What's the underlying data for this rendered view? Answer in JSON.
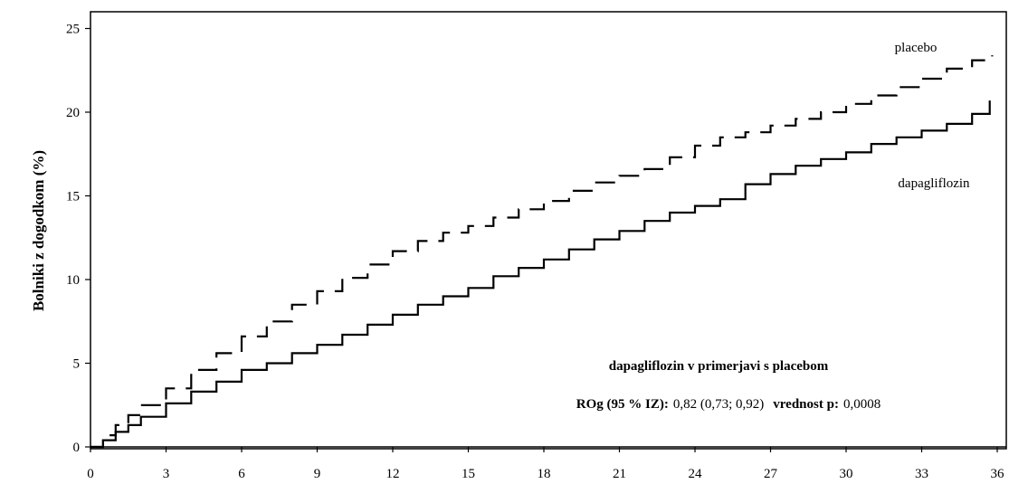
{
  "chart_data": {
    "type": "line",
    "ylabel": "Bolniki z dogodkom (%)",
    "xlabel": "",
    "xlim": [
      0,
      36
    ],
    "ylim": [
      0,
      26
    ],
    "x_ticks": [
      0,
      3,
      6,
      9,
      12,
      15,
      18,
      21,
      24,
      27,
      30,
      33,
      36
    ],
    "y_ticks": [
      0,
      5,
      10,
      15,
      20,
      25
    ],
    "grid": false,
    "series": [
      {
        "name": "placebo",
        "style": "dashed",
        "color": "#000000",
        "points": [
          [
            0,
            0
          ],
          [
            0.5,
            0.7
          ],
          [
            1,
            1.3
          ],
          [
            1.5,
            1.9
          ],
          [
            2,
            2.5
          ],
          [
            3,
            3.5
          ],
          [
            4,
            4.6
          ],
          [
            5,
            5.6
          ],
          [
            6,
            6.6
          ],
          [
            7,
            7.5
          ],
          [
            8,
            8.5
          ],
          [
            9,
            9.3
          ],
          [
            10,
            10.1
          ],
          [
            11,
            10.9
          ],
          [
            12,
            11.7
          ],
          [
            13,
            12.3
          ],
          [
            14,
            12.8
          ],
          [
            15,
            13.2
          ],
          [
            16,
            13.7
          ],
          [
            17,
            14.2
          ],
          [
            18,
            14.7
          ],
          [
            19,
            15.3
          ],
          [
            20,
            15.8
          ],
          [
            21,
            16.2
          ],
          [
            22,
            16.6
          ],
          [
            23,
            17.3
          ],
          [
            24,
            18.0
          ],
          [
            25,
            18.5
          ],
          [
            26,
            18.8
          ],
          [
            27,
            19.2
          ],
          [
            28,
            19.6
          ],
          [
            29,
            20.0
          ],
          [
            30,
            20.5
          ],
          [
            31,
            21.0
          ],
          [
            32,
            21.5
          ],
          [
            33,
            22.0
          ],
          [
            34,
            22.6
          ],
          [
            35,
            23.1
          ],
          [
            35.8,
            23.4
          ]
        ]
      },
      {
        "name": "dapagliflozin",
        "style": "solid",
        "color": "#000000",
        "points": [
          [
            0,
            0
          ],
          [
            0.5,
            0.4
          ],
          [
            1,
            0.9
          ],
          [
            1.5,
            1.3
          ],
          [
            2,
            1.8
          ],
          [
            3,
            2.6
          ],
          [
            4,
            3.3
          ],
          [
            5,
            3.9
          ],
          [
            6,
            4.6
          ],
          [
            7,
            5.0
          ],
          [
            8,
            5.6
          ],
          [
            9,
            6.1
          ],
          [
            10,
            6.7
          ],
          [
            11,
            7.3
          ],
          [
            12,
            7.9
          ],
          [
            13,
            8.5
          ],
          [
            14,
            9.0
          ],
          [
            15,
            9.5
          ],
          [
            16,
            10.2
          ],
          [
            17,
            10.7
          ],
          [
            18,
            11.2
          ],
          [
            19,
            11.8
          ],
          [
            20,
            12.4
          ],
          [
            21,
            12.9
          ],
          [
            22,
            13.5
          ],
          [
            23,
            14.0
          ],
          [
            24,
            14.4
          ],
          [
            25,
            14.8
          ],
          [
            26,
            15.7
          ],
          [
            27,
            16.3
          ],
          [
            28,
            16.8
          ],
          [
            29,
            17.2
          ],
          [
            30,
            17.6
          ],
          [
            31,
            18.1
          ],
          [
            32,
            18.5
          ],
          [
            33,
            18.9
          ],
          [
            34,
            19.3
          ],
          [
            35,
            19.9
          ],
          [
            35.7,
            20.7
          ]
        ]
      }
    ],
    "labels": {
      "placebo": "placebo",
      "dapagliflozin": "dapagliflozin"
    },
    "annotation": {
      "title": "dapagliflozin v primerjavi s placebom",
      "hr_label": "ROg (95 % IZ):",
      "hr_value": "0,82 (0,73; 0,92)",
      "p_label": "vrednost p:",
      "p_value": "0,0008"
    }
  }
}
